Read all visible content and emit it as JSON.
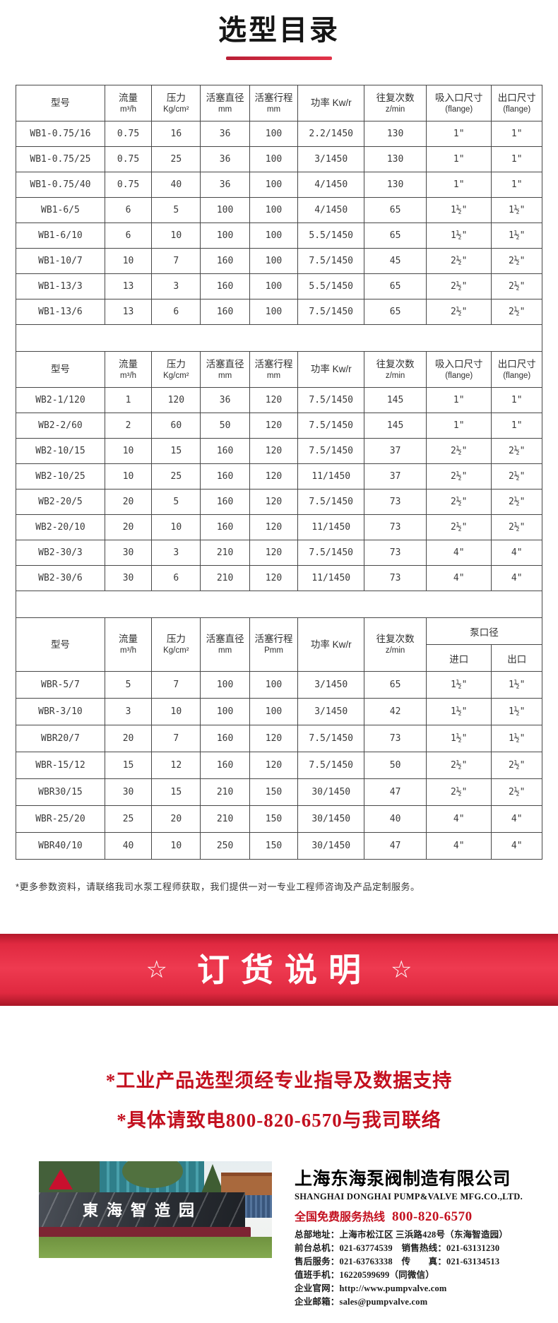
{
  "page": {
    "title": "选型目录"
  },
  "colors": {
    "accent_red": "#d2213c",
    "banner_red": "#e02940",
    "text_red": "#c3101f",
    "table_border": "#474747"
  },
  "tables": [
    {
      "series": "WB1",
      "columns": [
        {
          "l1": "型号",
          "l2": ""
        },
        {
          "l1": "流量",
          "l2": "m³/h"
        },
        {
          "l1": "压力",
          "l2": "Kg/cm²"
        },
        {
          "l1": "活塞直径",
          "l2": "mm"
        },
        {
          "l1": "活塞行程",
          "l2": "mm"
        },
        {
          "l1": "功率 Kw/r",
          "l2": ""
        },
        {
          "l1": "往复次数",
          "l2": "z/min"
        },
        {
          "l1": "吸入口尺寸",
          "l2": "(flange)"
        },
        {
          "l1": "出口尺寸",
          "l2": "(flange)"
        }
      ],
      "rows": [
        [
          "WB1-0.75/16",
          "0.75",
          "16",
          "36",
          "100",
          "2.2/1450",
          "130",
          "1\"",
          "1\""
        ],
        [
          "WB1-0.75/25",
          "0.75",
          "25",
          "36",
          "100",
          "3/1450",
          "130",
          "1\"",
          "1\""
        ],
        [
          "WB1-0.75/40",
          "0.75",
          "40",
          "36",
          "100",
          "4/1450",
          "130",
          "1\"",
          "1\""
        ],
        [
          "WB1-6/5",
          "6",
          "5",
          "100",
          "100",
          "4/1450",
          "65",
          "1½\"",
          "1½\""
        ],
        [
          "WB1-6/10",
          "6",
          "10",
          "100",
          "100",
          "5.5/1450",
          "65",
          "1½\"",
          "1½\""
        ],
        [
          "WB1-10/7",
          "10",
          "7",
          "160",
          "100",
          "7.5/1450",
          "45",
          "2½\"",
          "2½\""
        ],
        [
          "WB1-13/3",
          "13",
          "3",
          "160",
          "100",
          "5.5/1450",
          "65",
          "2½\"",
          "2½\""
        ],
        [
          "WB1-13/6",
          "13",
          "6",
          "160",
          "100",
          "7.5/1450",
          "65",
          "2½\"",
          "2½\""
        ]
      ]
    },
    {
      "series": "WB2",
      "columns": [
        {
          "l1": "型号",
          "l2": ""
        },
        {
          "l1": "流量",
          "l2": "m³/h"
        },
        {
          "l1": "压力",
          "l2": "Kg/cm²"
        },
        {
          "l1": "活塞直径",
          "l2": "mm"
        },
        {
          "l1": "活塞行程",
          "l2": "mm"
        },
        {
          "l1": "功率 Kw/r",
          "l2": ""
        },
        {
          "l1": "往复次数",
          "l2": "z/min"
        },
        {
          "l1": "吸入口尺寸",
          "l2": "(flange)"
        },
        {
          "l1": "出口尺寸",
          "l2": "(flange)"
        }
      ],
      "rows": [
        [
          "WB2-1/120",
          "1",
          "120",
          "36",
          "120",
          "7.5/1450",
          "145",
          "1\"",
          "1\""
        ],
        [
          "WB2-2/60",
          "2",
          "60",
          "50",
          "120",
          "7.5/1450",
          "145",
          "1\"",
          "1\""
        ],
        [
          "WB2-10/15",
          "10",
          "15",
          "160",
          "120",
          "7.5/1450",
          "37",
          "2½\"",
          "2½\""
        ],
        [
          "WB2-10/25",
          "10",
          "25",
          "160",
          "120",
          "11/1450",
          "37",
          "2½\"",
          "2½\""
        ],
        [
          "WB2-20/5",
          "20",
          "5",
          "160",
          "120",
          "7.5/1450",
          "73",
          "2½\"",
          "2½\""
        ],
        [
          "WB2-20/10",
          "20",
          "10",
          "160",
          "120",
          "11/1450",
          "73",
          "2½\"",
          "2½\""
        ],
        [
          "WB2-30/3",
          "30",
          "3",
          "210",
          "120",
          "7.5/1450",
          "73",
          "4\"",
          "4\""
        ],
        [
          "WB2-30/6",
          "30",
          "6",
          "210",
          "120",
          "11/1450",
          "73",
          "4\"",
          "4\""
        ]
      ]
    },
    {
      "series": "WBR",
      "columns": [
        {
          "l1": "型号",
          "l2": ""
        },
        {
          "l1": "流量",
          "l2": "m³/h"
        },
        {
          "l1": "压力",
          "l2": "Kg/cm²"
        },
        {
          "l1": "活塞直径",
          "l2": "mm"
        },
        {
          "l1": "活塞行程",
          "l2": "Pmm"
        },
        {
          "l1": "功率 Kw/r",
          "l2": ""
        },
        {
          "l1": "往复次数",
          "l2": "z/min"
        }
      ],
      "group": {
        "label": "泵口径",
        "children": [
          "进口",
          "出口"
        ]
      },
      "rows": [
        [
          "WBR-5/7",
          "5",
          "7",
          "100",
          "100",
          "3/1450",
          "65",
          "1½\"",
          "1½\""
        ],
        [
          "WBR-3/10",
          "3",
          "10",
          "100",
          "100",
          "3/1450",
          "42",
          "1½\"",
          "1½\""
        ],
        [
          "WBR20/7",
          "20",
          "7",
          "160",
          "120",
          "7.5/1450",
          "73",
          "1½\"",
          "1½\""
        ],
        [
          "WBR-15/12",
          "15",
          "12",
          "160",
          "120",
          "7.5/1450",
          "50",
          "2½\"",
          "2½\""
        ],
        [
          "WBR30/15",
          "30",
          "15",
          "210",
          "150",
          "30/1450",
          "47",
          "2½\"",
          "2½\""
        ],
        [
          "WBR-25/20",
          "25",
          "20",
          "210",
          "150",
          "30/1450",
          "40",
          "4\"",
          "4\""
        ],
        [
          "WBR40/10",
          "40",
          "10",
          "250",
          "150",
          "30/1450",
          "47",
          "4\"",
          "4\""
        ]
      ]
    }
  ],
  "footnote": "*更多参数资料，请联络我司水泵工程师获取，我们提供一对一专业工程师咨询及产品定制服务。",
  "banner": {
    "star": "☆",
    "text": "订货说明"
  },
  "notice": {
    "lines": [
      "*工业产品选型须经专业指导及数据支持",
      "*具体请致电800-820-6570与我司联络"
    ]
  },
  "footer": {
    "photo_caption": "東海智造园",
    "company_cn": "上海东海泵阀制造有限公司",
    "company_en": "SHANGHAI DONGHAI PUMP&VALVE MFG.CO.,LTD.",
    "hotline_label": "全国免费服务热线",
    "hotline_number": "800-820-6570",
    "contact_lines": [
      "总部地址：上海市松江区 三浜路428号（东海智造园）",
      "前台总机：021-63774539　销售热线：021-63131230",
      "售后服务：021-63763338　传　　真：021-63134513",
      "值班手机：16220599699（同微信）",
      "企业官网：http://www.pumpvalve.com",
      "企业邮箱：sales@pumpvalve.com"
    ]
  }
}
